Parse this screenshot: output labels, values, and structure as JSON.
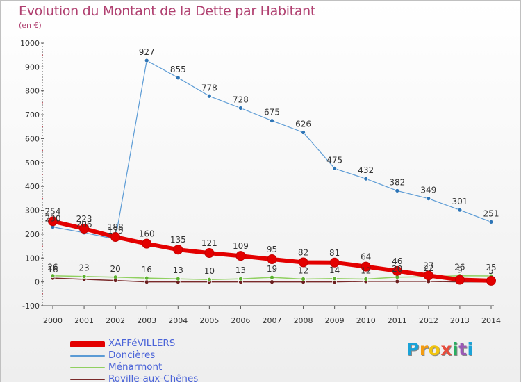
{
  "title": "Evolution du Montant de la Dette par Habitant",
  "subtitle": "(en €)",
  "logo": {
    "text": "Proxiti",
    "letters": [
      "P",
      "r",
      "o",
      "x",
      "i",
      "t",
      "i"
    ],
    "colors": [
      "#1aa3d8",
      "#f39c12",
      "#f1c40f",
      "#e74c3c",
      "#27ae60",
      "#9b59b6",
      "#1aa3d8"
    ]
  },
  "chart_data": {
    "type": "line",
    "x": [
      2000,
      2001,
      2002,
      2003,
      2004,
      2005,
      2006,
      2007,
      2008,
      2009,
      2010,
      2011,
      2012,
      2013,
      2014
    ],
    "ylim": [
      -100,
      1000
    ],
    "yticks": [
      -100,
      0,
      100,
      200,
      300,
      400,
      500,
      600,
      700,
      800,
      900,
      1000
    ],
    "grid": false,
    "legend_position": "bottom-left",
    "series": [
      {
        "name": "Roville-aux-Chênes",
        "color": "#7a2a2a",
        "marker_color": "#6b1f1f",
        "line_width": 1.5,
        "values": [
          16,
          11,
          6,
          0,
          0,
          0,
          0,
          0,
          0,
          0,
          2,
          2,
          2,
          0,
          0
        ],
        "labels": [
          "16",
          "",
          "",
          "",
          "",
          "",
          "",
          "",
          "",
          "",
          "",
          "",
          "",
          "",
          ""
        ]
      },
      {
        "name": "Ménarmont",
        "color": "#90d060",
        "marker_color": "#5cb030",
        "line_width": 1.5,
        "values": [
          26,
          23,
          20,
          16,
          13,
          10,
          13,
          19,
          12,
          14,
          12,
          20,
          22,
          26,
          25
        ],
        "labels": [
          "26",
          "23",
          "20",
          "16",
          "13",
          "10",
          "13",
          "19",
          "12",
          "14",
          "12",
          "20",
          "22",
          "26",
          "25"
        ]
      },
      {
        "name": "Doncières",
        "color": "#5b9bd5",
        "marker_color": "#2e75b6",
        "line_width": 1.2,
        "values": [
          230,
          206,
          179,
          927,
          855,
          778,
          728,
          675,
          626,
          475,
          432,
          382,
          349,
          301,
          251
        ],
        "labels": [
          "230",
          "206",
          "179",
          "927",
          "855",
          "778",
          "728",
          "675",
          "626",
          "475",
          "432",
          "382",
          "349",
          "301",
          "251"
        ]
      },
      {
        "name": "XAFFéVILLERS",
        "color": "#e30000",
        "marker_color": "#e30000",
        "line_width": 6,
        "values": [
          254,
          223,
          188,
          160,
          135,
          121,
          109,
          95,
          82,
          81,
          64,
          46,
          27,
          9,
          5
        ],
        "labels": [
          "254",
          "223",
          "188",
          "160",
          "135",
          "121",
          "109",
          "95",
          "82",
          "81",
          "64",
          "46",
          "27",
          "9",
          "5"
        ]
      }
    ],
    "legend_order": [
      "XAFFéVILLERS",
      "Doncières",
      "Ménarmont",
      "Roville-aux-Chênes"
    ]
  }
}
